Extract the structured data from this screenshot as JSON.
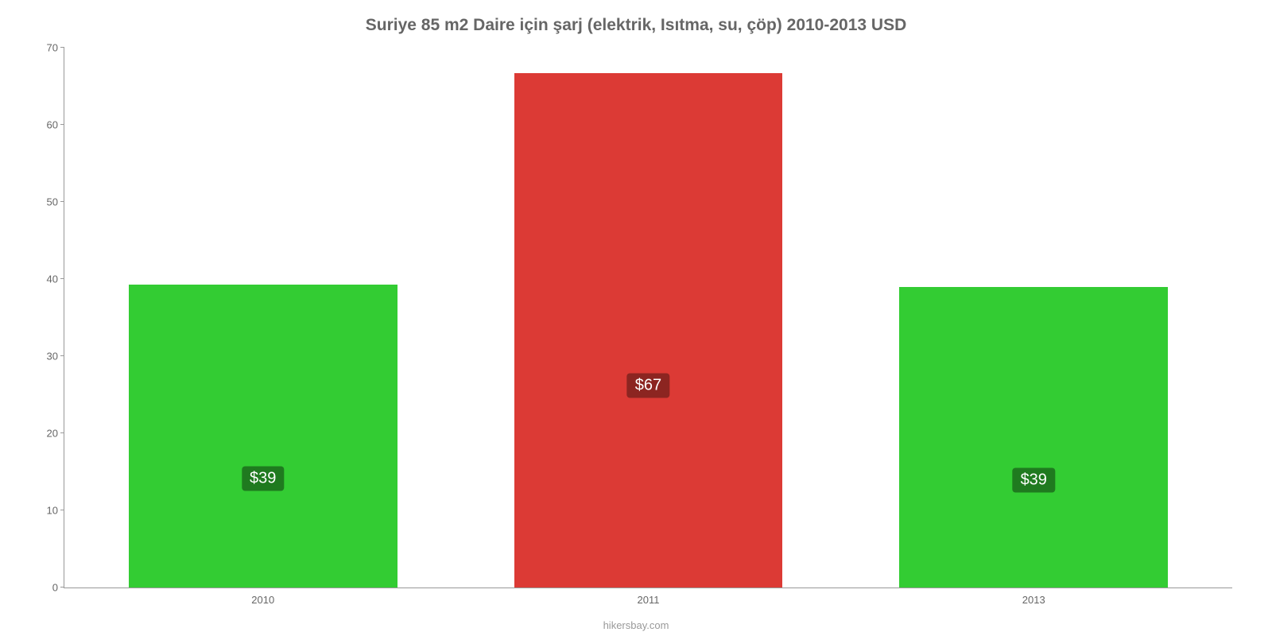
{
  "chart": {
    "type": "bar",
    "title": "Suriye 85 m2 Daire için şarj (elektrik, Isıtma, su, çöp) 2010-2013 USD",
    "title_fontsize": 21,
    "title_color": "#666666",
    "background_color": "#ffffff",
    "axis_color": "#999999",
    "tick_label_color": "#666666",
    "tick_label_fontsize": 13,
    "ylim": [
      0,
      70
    ],
    "yticks": [
      0,
      10,
      20,
      30,
      40,
      50,
      60,
      70
    ],
    "categories": [
      "2010",
      "2011",
      "2013"
    ],
    "values": [
      39.3,
      66.7,
      39.0
    ],
    "bar_labels": [
      "$39",
      "$67",
      "$39"
    ],
    "bar_label_top_pct": [
      56,
      56,
      56
    ],
    "bar_colors": [
      "#33cc33",
      "#dc3a35",
      "#33cc33"
    ],
    "bar_label_bg": [
      "#1f7a1f",
      "#8c2521",
      "#1f7a1f"
    ],
    "bar_label_fontsize": 20,
    "bar_width_pct": 23,
    "bar_positions_pct": [
      5.5,
      38.5,
      71.5
    ],
    "attribution": "hikersbay.com",
    "attribution_color": "#999999",
    "attribution_fontsize": 13
  }
}
